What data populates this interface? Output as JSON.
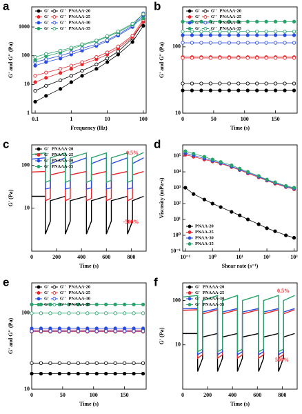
{
  "chart_data": [
    {
      "type": "line",
      "label": "a",
      "x_label": "Frequency (Hz)",
      "y_label": "G' and G'' (Pa)",
      "xscale": "log",
      "yscale": "log",
      "xlim": [
        0.08,
        120
      ],
      "ylim": [
        1,
        5000
      ],
      "xticks": [
        0.1,
        1,
        10,
        100
      ],
      "yticks": [
        1,
        10,
        100,
        1000
      ],
      "markers": true,
      "lines": true,
      "legend": "upper left",
      "x": [
        0.1,
        0.2,
        0.5,
        1,
        2,
        5,
        10,
        20,
        50,
        100
      ],
      "series": [
        {
          "name": "G'",
          "group": "PNAAA-20",
          "color": "#000000",
          "filled": true,
          "values": [
            2.5,
            4,
            7,
            12,
            20,
            35,
            60,
            110,
            300,
            1100
          ]
        },
        {
          "name": "G''",
          "group": "PNAAA-20",
          "color": "#000000",
          "filled": false,
          "values": [
            6,
            9,
            14,
            20,
            30,
            50,
            80,
            140,
            400,
            1500
          ]
        },
        {
          "name": "G'",
          "group": "PNAAA-25",
          "color": "#e8262b",
          "filled": true,
          "values": [
            12,
            17,
            25,
            35,
            50,
            75,
            110,
            180,
            450,
            1500
          ]
        },
        {
          "name": "G''",
          "group": "PNAAA-25",
          "color": "#e8262b",
          "filled": false,
          "values": [
            20,
            26,
            35,
            45,
            60,
            90,
            130,
            210,
            500,
            1800
          ]
        },
        {
          "name": "G'",
          "group": "PNAAA-30",
          "color": "#2a4ee0",
          "filled": true,
          "values": [
            45,
            60,
            80,
            110,
            150,
            220,
            320,
            500,
            1000,
            2500
          ]
        },
        {
          "name": "G''",
          "group": "PNAAA-30",
          "color": "#2a4ee0",
          "filled": false,
          "values": [
            60,
            75,
            100,
            130,
            180,
            250,
            350,
            550,
            1100,
            3000
          ]
        },
        {
          "name": "G'",
          "group": "PNAAA-35",
          "color": "#2aa36b",
          "filled": true,
          "values": [
            70,
            95,
            130,
            170,
            230,
            320,
            450,
            650,
            1200,
            2000
          ]
        },
        {
          "name": "G''",
          "group": "PNAAA-35",
          "color": "#2aa36b",
          "filled": false,
          "values": [
            90,
            115,
            150,
            190,
            250,
            340,
            480,
            700,
            1300,
            2800
          ]
        }
      ]
    },
    {
      "type": "line",
      "label": "b",
      "x_label": "Time (s)",
      "y_label": "G' and G'' (Pa)",
      "xscale": "linear",
      "yscale": "log",
      "xlim": [
        0,
        185
      ],
      "ylim": [
        10,
        400
      ],
      "xticks": [
        0,
        50,
        100,
        150
      ],
      "yticks": [
        10,
        100
      ],
      "markers": true,
      "lines": true,
      "legend": "upper left",
      "x": [
        0,
        15,
        30,
        45,
        60,
        75,
        90,
        105,
        120,
        135,
        150,
        165,
        180
      ],
      "series": [
        {
          "name": "G'",
          "group": "PNAAA-20",
          "color": "#000000",
          "filled": true,
          "values": [
            22,
            22,
            22,
            22,
            22,
            22,
            22,
            22,
            22,
            22,
            22,
            22,
            22
          ]
        },
        {
          "name": "G''",
          "group": "PNAAA-20",
          "color": "#000000",
          "filled": false,
          "values": [
            28,
            28,
            28,
            28,
            28,
            28,
            28,
            28,
            28,
            28,
            28,
            28,
            28
          ]
        },
        {
          "name": "G'",
          "group": "PNAAA-25",
          "color": "#e8262b",
          "filled": true,
          "values": [
            70,
            70,
            70,
            70,
            70,
            70,
            70,
            70,
            70,
            70,
            70,
            70,
            70
          ]
        },
        {
          "name": "G''",
          "group": "PNAAA-25",
          "color": "#e8262b",
          "filled": false,
          "values": [
            68,
            68,
            68,
            68,
            68,
            68,
            68,
            68,
            68,
            68,
            68,
            68,
            68
          ]
        },
        {
          "name": "G'",
          "group": "PNAAA-30",
          "color": "#2a4ee0",
          "filled": true,
          "values": [
            150,
            150,
            150,
            150,
            150,
            150,
            150,
            150,
            150,
            150,
            150,
            150,
            150
          ]
        },
        {
          "name": "G''",
          "group": "PNAAA-30",
          "color": "#2a4ee0",
          "filled": false,
          "values": [
            115,
            115,
            115,
            115,
            115,
            115,
            115,
            115,
            115,
            115,
            115,
            115,
            115
          ]
        },
        {
          "name": "G'",
          "group": "PNAAA-35",
          "color": "#2aa36b",
          "filled": true,
          "values": [
            240,
            240,
            240,
            240,
            240,
            240,
            240,
            240,
            240,
            240,
            240,
            240,
            240
          ]
        },
        {
          "name": "G''",
          "group": "PNAAA-35",
          "color": "#2aa36b",
          "filled": false,
          "values": [
            170,
            170,
            170,
            170,
            170,
            170,
            170,
            170,
            170,
            170,
            170,
            170,
            170
          ]
        }
      ]
    },
    {
      "type": "line",
      "label": "c",
      "x_label": "Time (s)",
      "y_label": "G' (Pa)",
      "xscale": "linear",
      "yscale": "log",
      "xlim": [
        0,
        920
      ],
      "ylim": [
        1,
        300
      ],
      "xticks": [
        0,
        200,
        400,
        600,
        800
      ],
      "yticks": [
        10,
        100
      ],
      "markers": false,
      "lines": true,
      "legend": "upper left",
      "annotations": [
        "0.5%",
        "-500%"
      ],
      "x": [
        0,
        110,
        110,
        150,
        150,
        270,
        270,
        310,
        310,
        440,
        440,
        480,
        480,
        600,
        600,
        640,
        640,
        770,
        770,
        810,
        810,
        900
      ],
      "series": [
        {
          "name": "G'",
          "group": "PNAAA-20",
          "color": "#000000",
          "filled": true,
          "values": [
            19,
            19,
            2.5,
            5,
            15,
            19,
            2.5,
            5,
            15,
            19,
            2.5,
            5,
            15,
            19,
            2.5,
            5,
            15,
            19,
            2.5,
            5,
            15,
            19
          ]
        },
        {
          "name": "G'",
          "group": "PNAAA-25",
          "color": "#e8262b",
          "filled": true,
          "values": [
            70,
            72,
            15,
            17,
            60,
            72,
            15,
            17,
            60,
            72,
            15,
            17,
            60,
            72,
            15,
            17,
            60,
            72,
            15,
            17,
            60,
            72
          ]
        },
        {
          "name": "G'",
          "group": "PNAAA-30",
          "color": "#2a4ee0",
          "filled": true,
          "values": [
            140,
            150,
            28,
            30,
            110,
            150,
            28,
            30,
            110,
            150,
            28,
            30,
            110,
            150,
            28,
            30,
            110,
            150,
            28,
            30,
            110,
            150
          ]
        },
        {
          "name": "G'",
          "group": "PNAAA-35",
          "color": "#2aa36b",
          "filled": true,
          "values": [
            180,
            195,
            40,
            45,
            150,
            195,
            40,
            45,
            150,
            195,
            40,
            45,
            150,
            195,
            40,
            45,
            150,
            195,
            40,
            45,
            150,
            200
          ]
        }
      ]
    },
    {
      "type": "line",
      "label": "d",
      "x_label": "Shear rate (s⁻¹)",
      "y_label": "Viscosity (mPa·s)",
      "xscale": "log",
      "yscale": "log",
      "xlim": [
        0.08,
        1300
      ],
      "ylim": [
        0.1,
        500000
      ],
      "xticks": [
        {
          "value": 0.1,
          "label": "10⁻¹"
        },
        {
          "value": 1,
          "label": "10⁰"
        },
        {
          "value": 10,
          "label": "10¹"
        },
        {
          "value": 100,
          "label": "10²"
        },
        {
          "value": 1000,
          "label": "10³"
        }
      ],
      "yticks": [
        {
          "value": 0.1,
          "label": "10⁻¹"
        },
        {
          "value": 1,
          "label": "10⁰"
        },
        {
          "value": 10,
          "label": "10¹"
        },
        {
          "value": 100,
          "label": "10²"
        },
        {
          "value": 1000,
          "label": "10³"
        },
        {
          "value": 10000,
          "label": "10⁴"
        },
        {
          "value": 100000,
          "label": "10⁵"
        }
      ],
      "markers": true,
      "lines": true,
      "legend": "lower left",
      "x": [
        0.1,
        0.2,
        0.5,
        1,
        2,
        5,
        10,
        20,
        50,
        100,
        200,
        500,
        1000
      ],
      "series": [
        {
          "name": "PNAA-20",
          "color": "#000000",
          "filled": true,
          "values": [
            1000,
            400,
            180,
            100,
            60,
            30,
            18,
            10,
            5,
            2.8,
            1.8,
            1.0,
            0.7
          ]
        },
        {
          "name": "PNAA-25",
          "color": "#e8262b",
          "filled": true,
          "values": [
            120000,
            90000,
            60000,
            45000,
            33000,
            20000,
            13000,
            8000,
            4500,
            2800,
            1800,
            1100,
            800
          ]
        },
        {
          "name": "PNAA-30",
          "color": "#2a4ee0",
          "filled": true,
          "values": [
            150000,
            110000,
            70000,
            50000,
            36000,
            22000,
            14000,
            9000,
            5000,
            3000,
            2000,
            1200,
            900
          ]
        },
        {
          "name": "PNAA-35",
          "color": "#2aa36b",
          "filled": true,
          "values": [
            200000,
            140000,
            90000,
            60000,
            42000,
            26000,
            16000,
            10000,
            5500,
            3300,
            2200,
            1300,
            1000
          ]
        }
      ]
    },
    {
      "type": "line",
      "label": "e",
      "x_label": "Time (s)",
      "y_label": "G' and G'' (Pa)",
      "xscale": "linear",
      "yscale": "log",
      "xlim": [
        0,
        185
      ],
      "ylim": [
        10,
        250
      ],
      "xticks": [
        0,
        50,
        100,
        150
      ],
      "yticks": [
        10,
        100
      ],
      "markers": true,
      "lines": true,
      "legend": "upper left",
      "x": [
        0,
        15,
        30,
        45,
        60,
        75,
        90,
        105,
        120,
        135,
        150,
        165,
        180
      ],
      "series": [
        {
          "name": "G'",
          "group": "PNAAA-20",
          "color": "#000000",
          "filled": true,
          "values": [
            16,
            16,
            16,
            16,
            16,
            16,
            16,
            16,
            16,
            16,
            16,
            16,
            16
          ]
        },
        {
          "name": "G''",
          "group": "PNAAA-20",
          "color": "#000000",
          "filled": false,
          "values": [
            22,
            22,
            22,
            22,
            22,
            22,
            22,
            22,
            22,
            22,
            22,
            22,
            22
          ]
        },
        {
          "name": "G'",
          "group": "PNAAA-25",
          "color": "#e8262b",
          "filled": true,
          "values": [
            60,
            60,
            60,
            60,
            60,
            60,
            60,
            60,
            60,
            60,
            60,
            60,
            60
          ]
        },
        {
          "name": "G''",
          "group": "PNAAA-25",
          "color": "#e8262b",
          "filled": false,
          "values": [
            57,
            57,
            57,
            57,
            57,
            57,
            57,
            57,
            57,
            57,
            57,
            57,
            57
          ]
        },
        {
          "name": "G'",
          "group": "PNAAA-30",
          "color": "#2a4ee0",
          "filled": true,
          "values": [
            63,
            63,
            63,
            63,
            63,
            63,
            63,
            63,
            63,
            63,
            63,
            63,
            63
          ]
        },
        {
          "name": "G''",
          "group": "PNAAA-30",
          "color": "#2a4ee0",
          "filled": false,
          "values": [
            58,
            58,
            58,
            58,
            58,
            58,
            58,
            58,
            58,
            58,
            58,
            58,
            58
          ]
        },
        {
          "name": "G'",
          "group": "PNAAA-35",
          "color": "#2aa36b",
          "filled": true,
          "values": [
            130,
            130,
            130,
            130,
            130,
            130,
            130,
            130,
            130,
            130,
            130,
            130,
            130
          ]
        },
        {
          "name": "G''",
          "group": "PNAAA-35",
          "color": "#2aa36b",
          "filled": false,
          "values": [
            100,
            100,
            100,
            100,
            100,
            100,
            100,
            100,
            100,
            100,
            100,
            100,
            100
          ]
        }
      ]
    },
    {
      "type": "line",
      "label": "f",
      "x_label": "Time (s)",
      "y_label": "G' (Pa)",
      "xscale": "linear",
      "yscale": "log",
      "xlim": [
        0,
        920
      ],
      "ylim": [
        1,
        250
      ],
      "xticks": [
        0,
        200,
        400,
        600,
        800
      ],
      "yticks": [
        10,
        100
      ],
      "markers": false,
      "lines": true,
      "legend": "upper left",
      "annotations": [
        "0.5%",
        "500%"
      ],
      "x": [
        0,
        120,
        120,
        160,
        160,
        280,
        280,
        320,
        320,
        440,
        440,
        480,
        480,
        610,
        610,
        650,
        650,
        770,
        770,
        810,
        810,
        900
      ],
      "series": [
        {
          "name": "G'",
          "group": "PNAAA-20",
          "color": "#000000",
          "filled": true,
          "values": [
            18,
            18,
            2.5,
            5,
            15,
            18,
            2.5,
            5,
            15,
            18,
            2.5,
            5,
            15,
            18,
            2.5,
            5,
            15,
            18,
            2.5,
            5,
            15,
            18
          ]
        },
        {
          "name": "G'",
          "group": "PNAAA-25",
          "color": "#e8262b",
          "filled": true,
          "values": [
            60,
            62,
            5,
            6,
            50,
            62,
            5,
            6,
            50,
            62,
            5,
            6,
            50,
            62,
            5,
            6,
            50,
            62,
            5,
            6,
            50,
            62
          ]
        },
        {
          "name": "G'",
          "group": "PNAAA-30",
          "color": "#2a4ee0",
          "filled": true,
          "values": [
            65,
            66,
            6,
            7,
            55,
            66,
            6,
            7,
            55,
            66,
            6,
            7,
            55,
            66,
            6,
            7,
            55,
            66,
            6,
            7,
            55,
            66
          ]
        },
        {
          "name": "G'",
          "group": "PNAAA-35",
          "color": "#2aa36b",
          "filled": true,
          "values": [
            120,
            130,
            7,
            8,
            100,
            130,
            7,
            8,
            100,
            130,
            7,
            8,
            100,
            130,
            7,
            8,
            100,
            130,
            7,
            8,
            100,
            130
          ]
        }
      ]
    }
  ]
}
